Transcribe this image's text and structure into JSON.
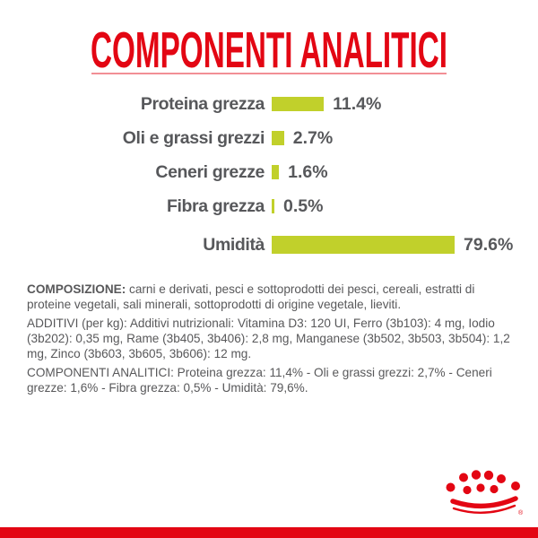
{
  "header": {
    "title": "COMPONENTI ANALITICI",
    "title_color": "#e30613"
  },
  "chart_data": {
    "type": "bar",
    "orientation": "horizontal",
    "title": "COMPONENTI ANALITICI",
    "categories": [
      "Proteina grezza",
      "Oli e grassi grezzi",
      "Ceneri grezze",
      "Fibra grezza",
      "Umidità"
    ],
    "values": [
      11.4,
      2.7,
      1.6,
      0.5,
      79.6
    ],
    "value_labels": [
      "11.4%",
      "2.7%",
      "1.6%",
      "0.5%",
      "79.6%"
    ],
    "unit": "%",
    "bar_color": "#c1d02b",
    "label_color": "#57585b",
    "grid": "off",
    "legend": "none",
    "note": "longest bar (Umidità 79.6%) is clipped to fit layout width"
  },
  "composition": {
    "lead": "COMPOSIZIONE:",
    "body": " carni e derivati, pesci e sottoprodotti dei pesci, cereali, estratti di proteine vegetali, sali minerali, sottoprodotti di origine vegetale, lieviti."
  },
  "additives": {
    "body": "ADDITIVI (per kg): Additivi nutrizionali: Vitamina D3: 120 UI, Ferro (3b103): 4 mg, Iodio (3b202): 0,35 mg, Rame (3b405, 3b406): 2,8 mg, Manganese (3b502, 3b503, 3b504): 1,2 mg, Zinco (3b603, 3b605, 3b606): 12 mg."
  },
  "analytical": {
    "body": "COMPONENTI ANALITICI: Proteina grezza: 11,4% - Oli e grassi grezzi: 2,7% - Ceneri grezze: 1,6% - Fibra grezza: 0,5% - Umidità: 79,6%."
  },
  "footer": {
    "brand_logo": "royal-canin-crown",
    "registered_mark": "®",
    "brand_color": "#e30613"
  }
}
